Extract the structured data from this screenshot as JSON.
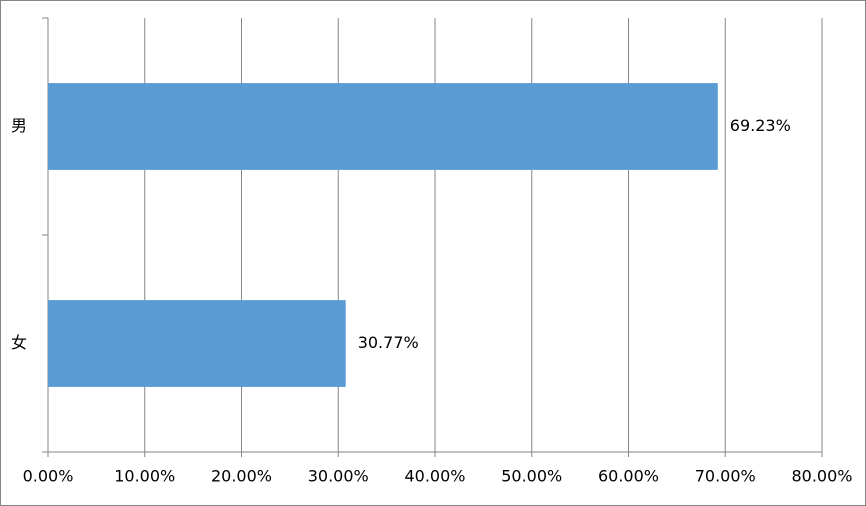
{
  "chart_data": {
    "type": "barh",
    "categories": [
      "男",
      "女"
    ],
    "values": [
      69.23,
      30.77
    ],
    "value_labels": [
      "69.23%",
      "30.77%"
    ],
    "color": "#5b9bd5",
    "xlim": [
      0,
      80
    ],
    "xticks": [
      {
        "value": 0,
        "label": "0.00%"
      },
      {
        "value": 10,
        "label": "10.00%"
      },
      {
        "value": 20,
        "label": "20.00%"
      },
      {
        "value": 30,
        "label": "30.00%"
      },
      {
        "value": 40,
        "label": "40.00%"
      },
      {
        "value": 50,
        "label": "50.00%"
      },
      {
        "value": 60,
        "label": "60.00%"
      },
      {
        "value": 70,
        "label": "70.00%"
      },
      {
        "value": 80,
        "label": "80.00%"
      }
    ],
    "grid": true
  }
}
